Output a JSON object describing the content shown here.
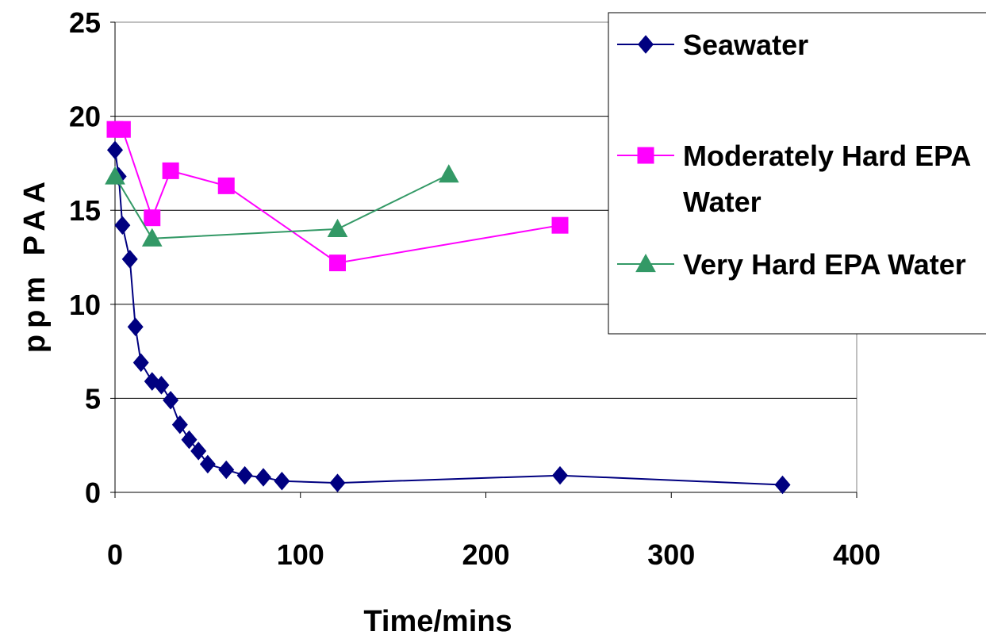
{
  "chart_data": {
    "type": "line",
    "title": "",
    "xlabel": "Time/mins",
    "ylabel": "ppm PAA",
    "xlim": [
      0,
      400
    ],
    "ylim": [
      0,
      25
    ],
    "x_ticks": [
      0,
      100,
      200,
      300,
      400
    ],
    "y_ticks": [
      0,
      5,
      10,
      15,
      20,
      25
    ],
    "x_tick_labels": [
      "0",
      "100",
      "200",
      "300",
      "400"
    ],
    "y_tick_labels": [
      "0",
      "5",
      "10",
      "15",
      "20",
      "25"
    ],
    "grid": "horizontal",
    "legend_position": "top-right",
    "series": [
      {
        "name": "Seawater",
        "name_lines": [
          "Seawater"
        ],
        "color": "#000080",
        "marker": "diamond",
        "points": [
          [
            0,
            18.2
          ],
          [
            2,
            16.8
          ],
          [
            4,
            14.2
          ],
          [
            8,
            12.4
          ],
          [
            11,
            8.8
          ],
          [
            14,
            6.9
          ],
          [
            20,
            5.9
          ],
          [
            25,
            5.7
          ],
          [
            30,
            4.9
          ],
          [
            35,
            3.6
          ],
          [
            40,
            2.8
          ],
          [
            45,
            2.2
          ],
          [
            50,
            1.5
          ],
          [
            60,
            1.2
          ],
          [
            70,
            0.9
          ],
          [
            80,
            0.8
          ],
          [
            90,
            0.6
          ],
          [
            120,
            0.5
          ],
          [
            240,
            0.9
          ],
          [
            360,
            0.4
          ]
        ]
      },
      {
        "name": "Moderately Hard EPA Water",
        "name_lines": [
          "Moderately Hard EPA",
          "Water"
        ],
        "color": "#ff00ff",
        "marker": "square",
        "points": [
          [
            0,
            19.3
          ],
          [
            4,
            19.3
          ],
          [
            20,
            14.6
          ],
          [
            30,
            17.1
          ],
          [
            60,
            16.3
          ],
          [
            120,
            12.2
          ],
          [
            240,
            14.2
          ]
        ]
      },
      {
        "name": "Very Hard EPA Water",
        "name_lines": [
          "Very Hard EPA Water"
        ],
        "color": "#339966",
        "marker": "triangle",
        "points": [
          [
            0,
            16.8
          ],
          [
            20,
            13.5
          ],
          [
            120,
            14.0
          ],
          [
            180,
            16.9
          ]
        ]
      }
    ]
  }
}
